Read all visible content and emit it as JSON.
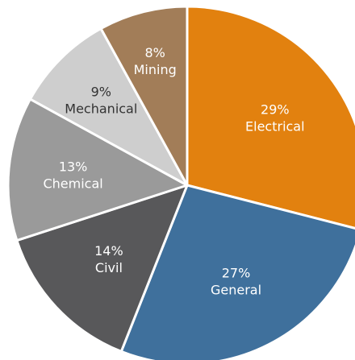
{
  "chart_data": {
    "type": "pie",
    "title": "",
    "slices": [
      {
        "label": "Electrical",
        "value": 29,
        "value_label": "29%",
        "color": "#e2810f"
      },
      {
        "label": "General",
        "value": 27,
        "value_label": "27%",
        "color": "#3f709c"
      },
      {
        "label": "Civil",
        "value": 14,
        "value_label": "14%",
        "color": "#58585a"
      },
      {
        "label": "Chemical",
        "value": 13,
        "value_label": "13%",
        "color": "#9a9a9a"
      },
      {
        "label": "Mechanical",
        "value": 9,
        "value_label": "9%",
        "color": "#cecece"
      },
      {
        "label": "Mining",
        "value": 8,
        "value_label": "8%",
        "color": "#a27d58"
      }
    ],
    "start_angle_deg": -90,
    "direction": "clockwise",
    "slice_border_color": "#ffffff",
    "legend": "none"
  }
}
